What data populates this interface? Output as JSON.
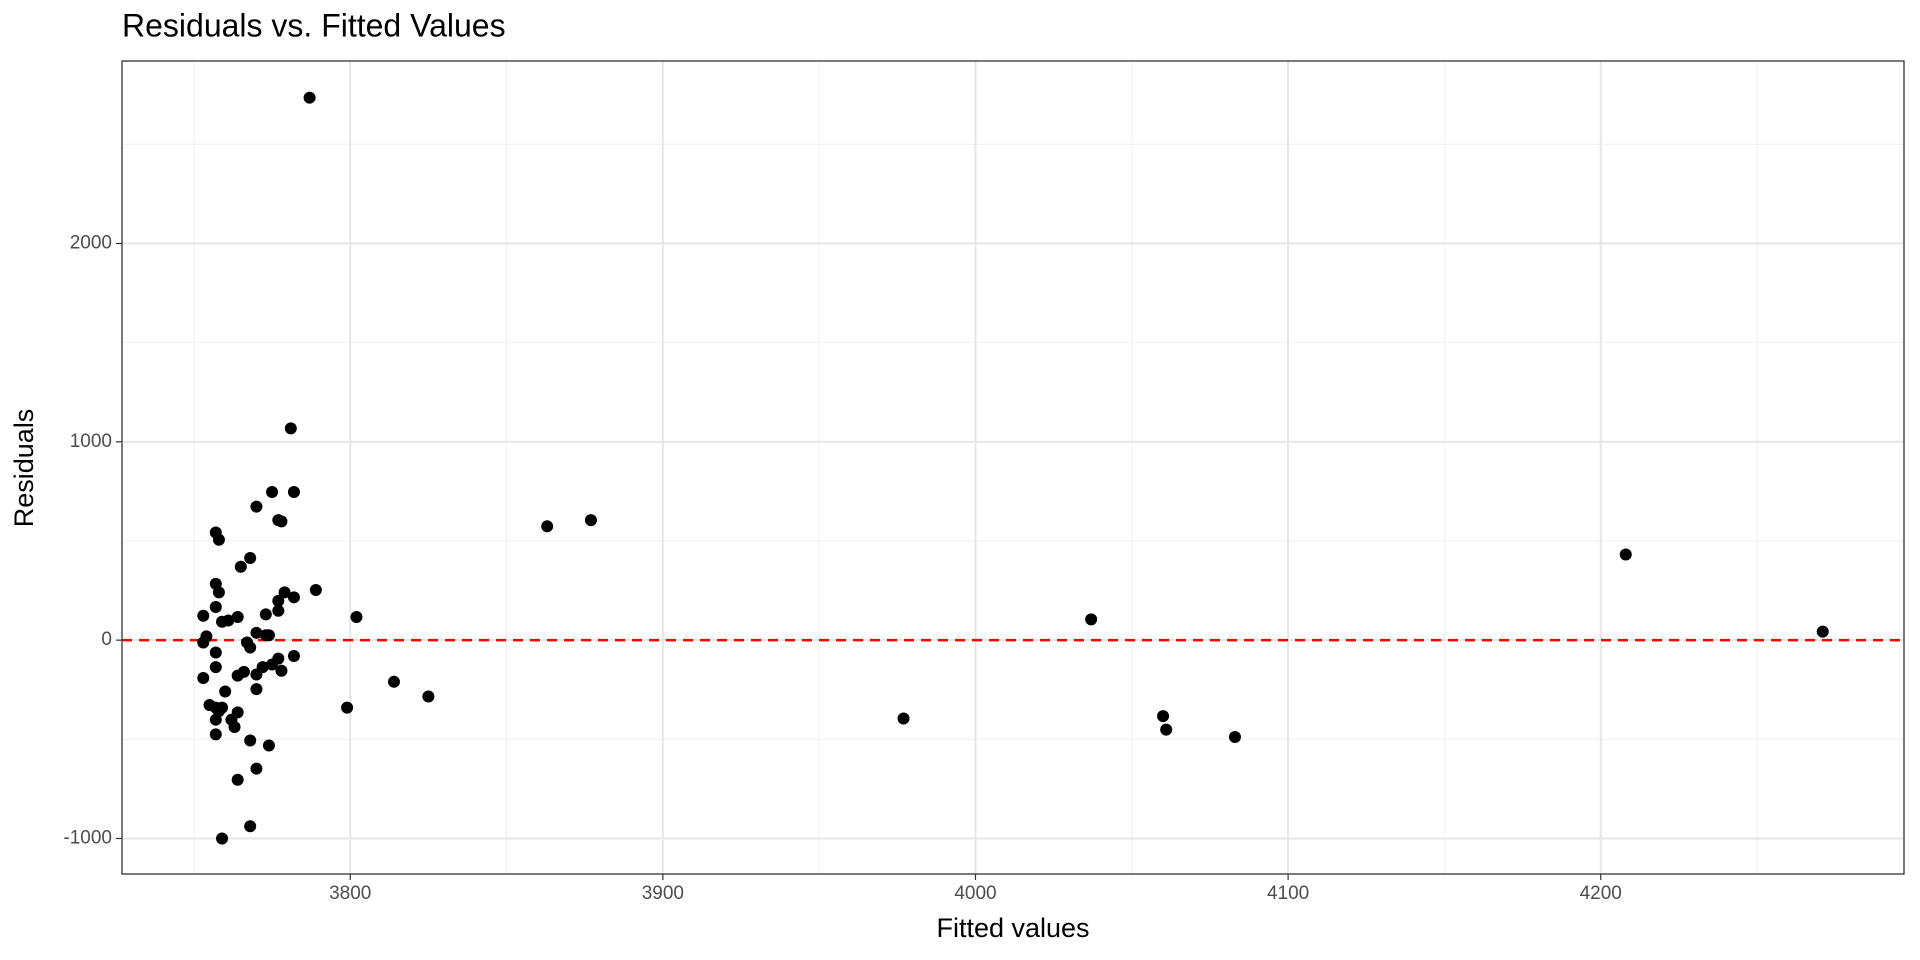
{
  "chart_data": {
    "type": "scatter",
    "title": "Residuals vs. Fitted Values",
    "x_label": "Fitted values",
    "y_label": "Residuals",
    "xlim": [
      3727,
      4297
    ],
    "ylim": [
      -1179,
      2920
    ],
    "xticks": [
      3800,
      3900,
      4000,
      4100,
      4200
    ],
    "yticks": [
      -1000,
      0,
      1000,
      2000
    ],
    "x_minor_grid": [
      3750,
      3850,
      3950,
      4050,
      4150,
      4250
    ],
    "y_minor_grid": [
      -500,
      500,
      1500,
      2500
    ],
    "grid": true,
    "hline": {
      "y": 0,
      "color": "#ff0000",
      "dash": "dashed"
    },
    "series": [
      {
        "name": "residuals",
        "color": "#000000",
        "x": [
          3787,
          3781,
          3775,
          3782,
          3770,
          3777,
          3778,
          3757,
          3758,
          3768,
          3765,
          3757,
          3789,
          3758,
          3779,
          3782,
          3777,
          3757,
          3777,
          3773,
          3753,
          3764,
          3802,
          3761,
          3759,
          3770,
          3773,
          3774,
          3754,
          3753,
          3767,
          3768,
          3757,
          3782,
          3777,
          3775,
          3772,
          3757,
          3778,
          3766,
          3770,
          3764,
          3753,
          3814,
          3760,
          3770,
          3825,
          3755,
          3757,
          3799,
          3759,
          3758,
          3764,
          3757,
          3762,
          3763,
          3757,
          3768,
          3774,
          3770,
          3764,
          3768,
          3759,
          3863,
          3877,
          3977,
          4037,
          4060,
          4061,
          4083,
          4208,
          4271
        ],
        "values": [
          2735,
          1068,
          747,
          747,
          673,
          605,
          599,
          543,
          506,
          414,
          370,
          284,
          253,
          241,
          241,
          216,
          198,
          167,
          148,
          130,
          123,
          117,
          117,
          99,
          93,
          37,
          25,
          25,
          19,
          -12,
          -12,
          -37,
          -62,
          -80,
          -93,
          -123,
          -136,
          -136,
          -154,
          -160,
          -173,
          -179,
          -191,
          -210,
          -259,
          -247,
          -284,
          -327,
          -340,
          -340,
          -340,
          -358,
          -364,
          -401,
          -401,
          -438,
          -475,
          -506,
          -531,
          -648,
          -704,
          -938,
          -1000,
          574,
          605,
          -395,
          105,
          -383,
          -451,
          -488,
          432,
          43
        ]
      }
    ]
  }
}
